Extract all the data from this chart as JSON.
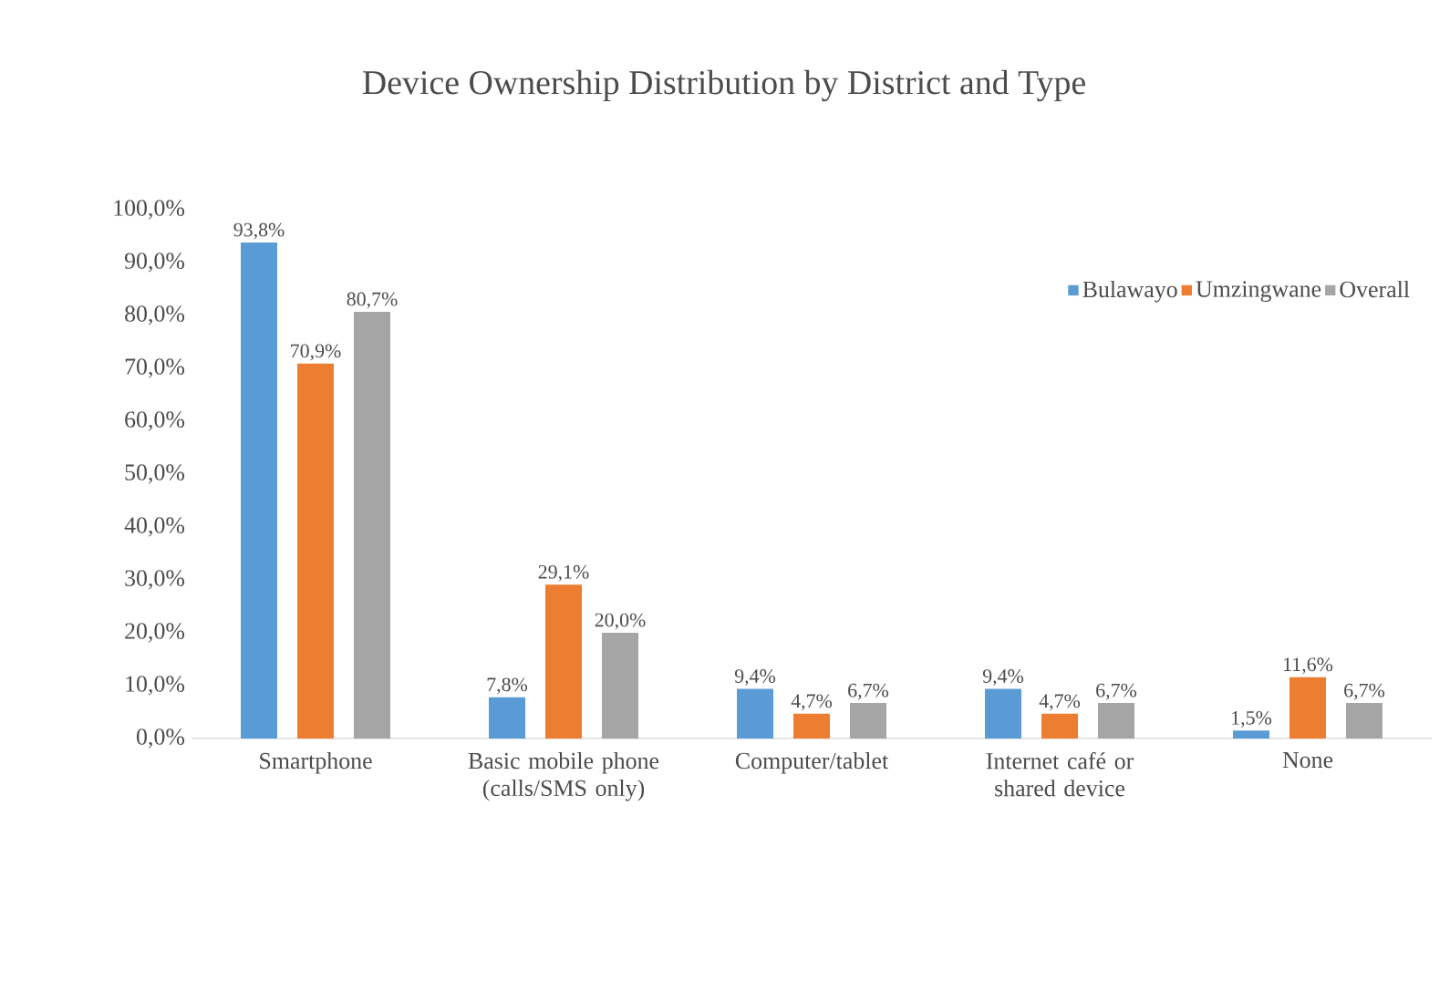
{
  "chart_data": {
    "type": "bar",
    "title": "Device Ownership Distribution by District and Type",
    "categories": [
      "Smartphone",
      "Basic mobile phone (calls/SMS only)",
      "Computer/tablet",
      "Internet café or shared device",
      "None"
    ],
    "series": [
      {
        "name": "Bulawayo",
        "color": "#5b9bd5",
        "values": [
          93.8,
          7.8,
          9.4,
          9.4,
          1.5
        ],
        "value_labels": [
          "93,8%",
          "7,8%",
          "9,4%",
          "9,4%",
          "1,5%"
        ]
      },
      {
        "name": "Umzingwane",
        "color": "#ed7d31",
        "values": [
          70.9,
          29.1,
          4.7,
          4.7,
          11.6
        ],
        "value_labels": [
          "70,9%",
          "29,1%",
          "4,7%",
          "4,7%",
          "11,6%"
        ]
      },
      {
        "name": "Overall",
        "color": "#a5a5a5",
        "values": [
          80.7,
          20.0,
          6.7,
          6.7,
          6.7
        ],
        "value_labels": [
          "80,7%",
          "20,0%",
          "6,7%",
          "6,7%",
          "6,7%"
        ]
      }
    ],
    "ylim": [
      0,
      100
    ],
    "yticks": [
      {
        "value": 0,
        "label": "0,0%"
      },
      {
        "value": 10,
        "label": "10,0%"
      },
      {
        "value": 20,
        "label": "20,0%"
      },
      {
        "value": 30,
        "label": "30,0%"
      },
      {
        "value": 40,
        "label": "40,0%"
      },
      {
        "value": 50,
        "label": "50,0%"
      },
      {
        "value": 60,
        "label": "60,0%"
      },
      {
        "value": 70,
        "label": "70,0%"
      },
      {
        "value": 80,
        "label": "80,0%"
      },
      {
        "value": 90,
        "label": "90,0%"
      },
      {
        "value": 100,
        "label": "100,0%"
      }
    ],
    "grid": false,
    "legend": "top right"
  }
}
